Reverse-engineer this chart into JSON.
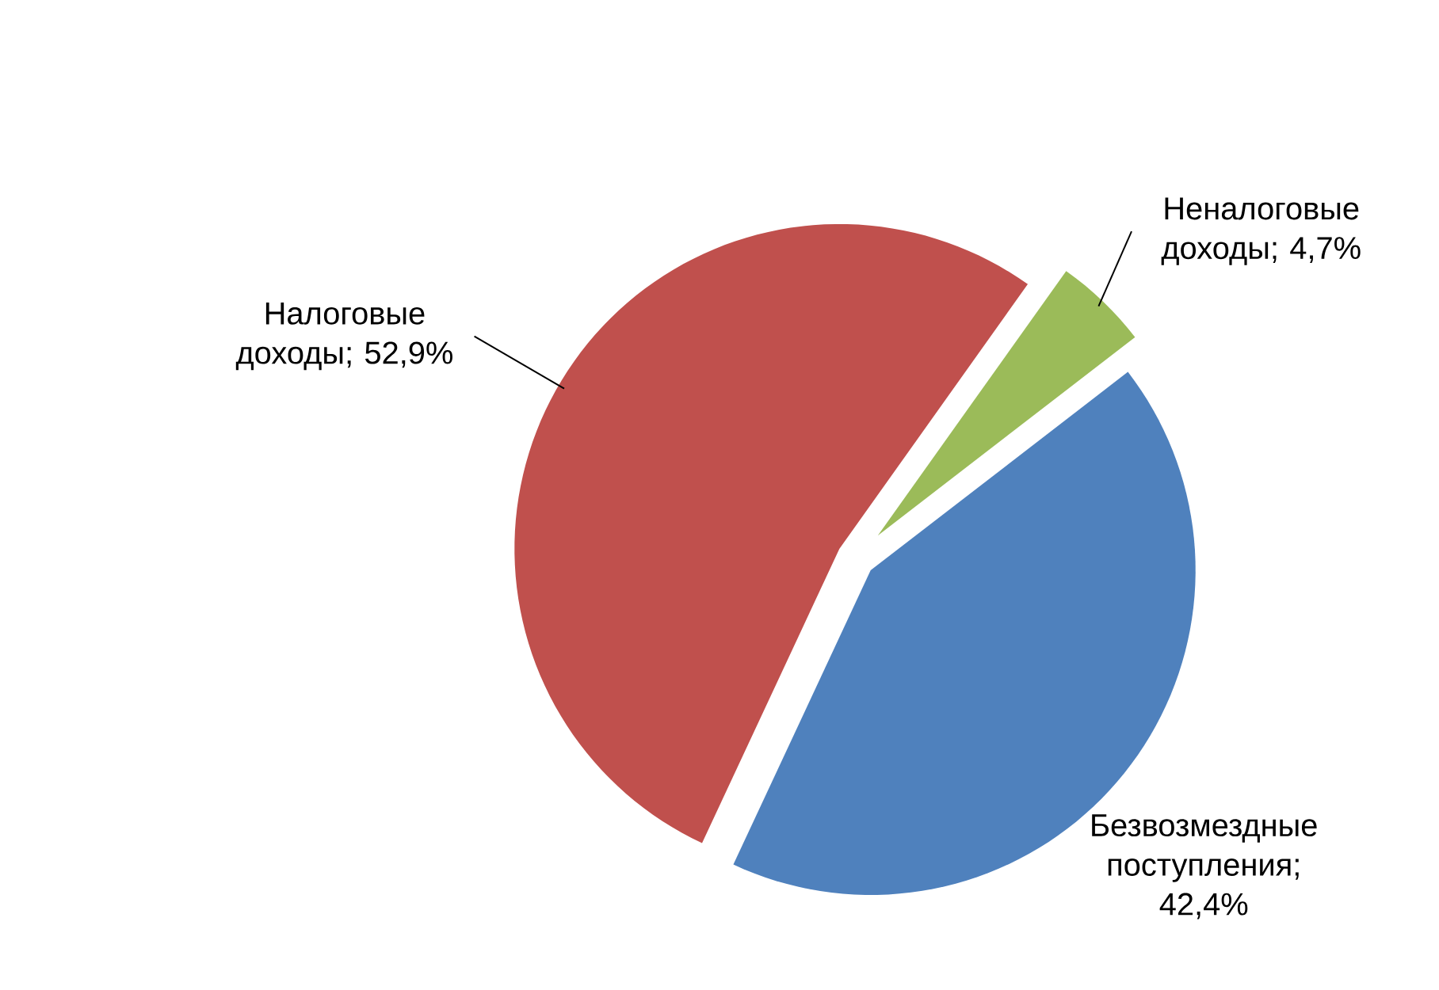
{
  "chart_data": {
    "type": "pie",
    "categories": [
      "Налоговые доходы",
      "Неналоговые доходы",
      "Безвозмездные поступления"
    ],
    "values": [
      52.9,
      4.7,
      42.4
    ],
    "value_labels": [
      "; 52,9%",
      "; 4,7%",
      "; 42,4%"
    ],
    "colors": [
      "#c0504d",
      "#9bbb59",
      "#4f81bd"
    ]
  }
}
